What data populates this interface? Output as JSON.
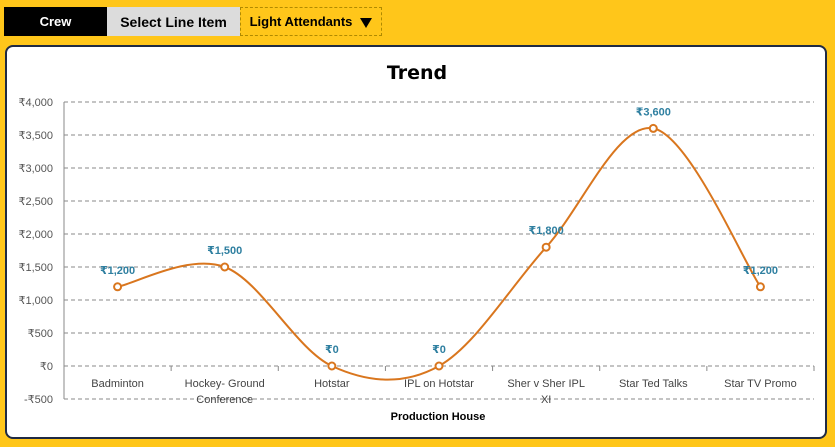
{
  "toolbar": {
    "crew_label": "Crew",
    "select_label": "Select Line Item",
    "dropdown_value": "Light Attendants",
    "dropdown_icon": "caret-down-icon"
  },
  "colors": {
    "background": "#FFC61A",
    "line": "#D9761E",
    "data_label": "#2E7FA0",
    "card_border": "#1F2A44"
  },
  "chart_data": {
    "type": "line",
    "title": "Trend",
    "xlabel": "Production House",
    "ylabel": "",
    "categories": [
      "Badminton",
      "Hockey- Ground Conference",
      "Hotstar",
      "IPL on Hotstar",
      "Sher v Sher IPL XI",
      "Star Ted Talks",
      "Star TV Promo"
    ],
    "series": [
      {
        "values": [
          1200,
          1500,
          0,
          0,
          1800,
          3600,
          1200
        ]
      }
    ],
    "data_labels": [
      "₹1,200",
      "₹1,500",
      "₹0",
      "₹0",
      "₹1,800",
      "₹3,600",
      "₹1,200"
    ],
    "ylim": [
      -500,
      4000
    ],
    "yticks": [
      4000,
      3500,
      3000,
      2500,
      2000,
      1500,
      1000,
      500,
      0,
      -500
    ],
    "ytick_labels": [
      "₹4,000",
      "₹3,500",
      "₹3,000",
      "₹2,500",
      "₹2,000",
      "₹1,500",
      "₹1,000",
      "₹500",
      "₹0",
      "-₹500"
    ],
    "grid": true,
    "smooth": true
  }
}
